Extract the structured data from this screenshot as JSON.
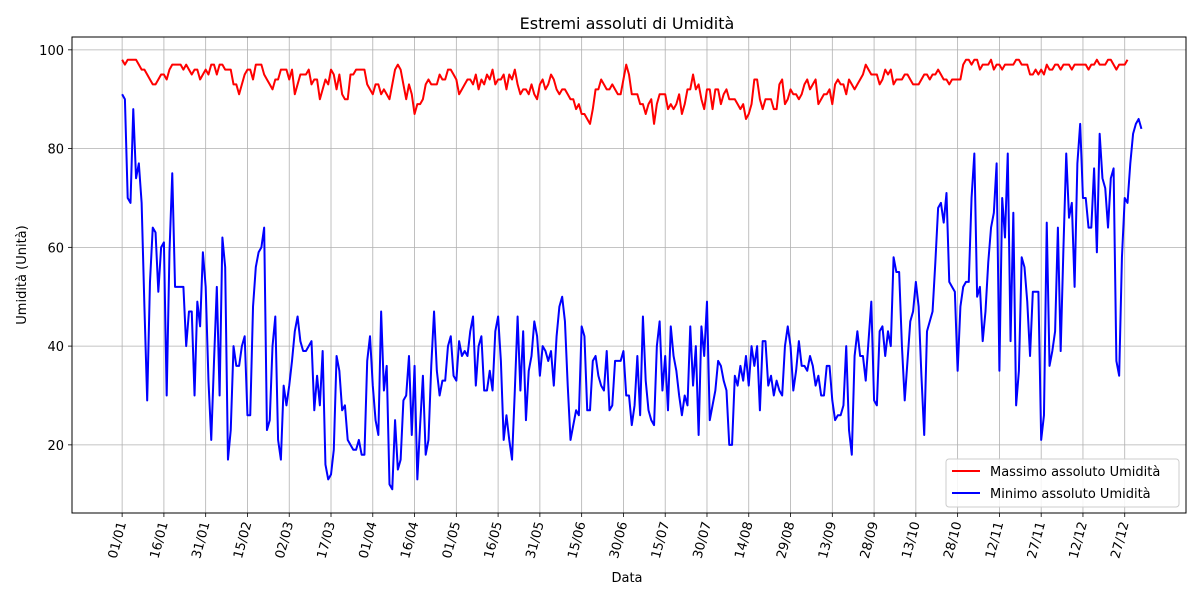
{
  "chart_data": {
    "type": "line",
    "title": "Estremi assoluti di Umidità",
    "xlabel": "Data",
    "ylabel": "Umidità (Unità)",
    "x_start": "2023-01-01",
    "x_end": "2023-12-31",
    "xlim": [
      "2022-12-14",
      "2024-01-18"
    ],
    "ylim": [
      6.2,
      102.6
    ],
    "x_ticks": [
      "01/01",
      "16/01",
      "31/01",
      "15/02",
      "02/03",
      "17/03",
      "01/04",
      "16/04",
      "01/05",
      "16/05",
      "31/05",
      "15/06",
      "30/06",
      "15/07",
      "30/07",
      "14/08",
      "29/08",
      "13/09",
      "28/09",
      "13/10",
      "28/10",
      "12/11",
      "27/11",
      "12/12",
      "27/12"
    ],
    "y_ticks": [
      20,
      40,
      60,
      80,
      100
    ],
    "grid": true,
    "legend_position": "bottom-right",
    "series": [
      {
        "name": "Massimo assoluto Umidità",
        "color": "#ff0000",
        "values": [
          98,
          97,
          98,
          98,
          98,
          98,
          97,
          96,
          96,
          95,
          94,
          93,
          93,
          94,
          95,
          95,
          94,
          96,
          97,
          97,
          97,
          97,
          96,
          97,
          96,
          95,
          96,
          96,
          94,
          95,
          96,
          95,
          97,
          97,
          95,
          97,
          97,
          96,
          96,
          96,
          93,
          93,
          91,
          93,
          95,
          96,
          96,
          94,
          97,
          97,
          97,
          95,
          94,
          93,
          92,
          94,
          94,
          96,
          96,
          96,
          94,
          96,
          91,
          93,
          95,
          95,
          95,
          96,
          93,
          94,
          94,
          90,
          92,
          94,
          93,
          96,
          95,
          92,
          95,
          91,
          90,
          90,
          95,
          95,
          96,
          96,
          96,
          96,
          93,
          92,
          91,
          93,
          93,
          91,
          92,
          91,
          90,
          93,
          96,
          97,
          96,
          93,
          90,
          93,
          91,
          87,
          89,
          89,
          90,
          93,
          94,
          93,
          93,
          93,
          95,
          94,
          94,
          96,
          96,
          95,
          94,
          91,
          92,
          93,
          94,
          94,
          93,
          95,
          92,
          94,
          93,
          95,
          94,
          96,
          93,
          94,
          94,
          95,
          92,
          95,
          94,
          96,
          93,
          91,
          92,
          92,
          91,
          93,
          91,
          90,
          93,
          94,
          92,
          93,
          95,
          94,
          92,
          91,
          92,
          92,
          91,
          90,
          90,
          88,
          89,
          87,
          87,
          86,
          85,
          88,
          92,
          92,
          94,
          93,
          92,
          92,
          93,
          92,
          91,
          91,
          94,
          97,
          95,
          91,
          91,
          91,
          89,
          89,
          87,
          89,
          90,
          85,
          89,
          91,
          91,
          91,
          88,
          89,
          88,
          89,
          91,
          87,
          89,
          92,
          92,
          95,
          92,
          93,
          90,
          88,
          92,
          92,
          88,
          92,
          92,
          89,
          91,
          92,
          90,
          90,
          90,
          89,
          88,
          89,
          86,
          87,
          89,
          94,
          94,
          90,
          88,
          90,
          90,
          90,
          88,
          88,
          93,
          94,
          89,
          90,
          92,
          91,
          91,
          90,
          91,
          93,
          94,
          92,
          93,
          94,
          89,
          90,
          91,
          91,
          92,
          89,
          93,
          94,
          93,
          93,
          91,
          94,
          93,
          92,
          93,
          94,
          95,
          97,
          96,
          95,
          95,
          95,
          93,
          94,
          96,
          95,
          96,
          93,
          94,
          94,
          94,
          95,
          95,
          94,
          93,
          93,
          93,
          94,
          95,
          95,
          94,
          95,
          95,
          96,
          95,
          94,
          94,
          93,
          94,
          94,
          94,
          94,
          97,
          98,
          98,
          97,
          98,
          98,
          96,
          97,
          97,
          97,
          98,
          96,
          97,
          97,
          96,
          97,
          97,
          97,
          97,
          98,
          98,
          97,
          97,
          97,
          95,
          95,
          96,
          95,
          96,
          95,
          97,
          96,
          96,
          97,
          97,
          96,
          97,
          97,
          97,
          96,
          97,
          97,
          97,
          97,
          97,
          96,
          97,
          97,
          98,
          97,
          97,
          97,
          98,
          98,
          97,
          96,
          97,
          97,
          97,
          98
        ]
      },
      {
        "name": "Minimo assoluto Umidità",
        "color": "#0000ff",
        "values": [
          91,
          90,
          70,
          69,
          88,
          74,
          77,
          69,
          48,
          29,
          53,
          64,
          63,
          51,
          60,
          61,
          30,
          59,
          75,
          52,
          52,
          52,
          52,
          40,
          47,
          47,
          30,
          49,
          44,
          59,
          52,
          33,
          21,
          37,
          52,
          30,
          62,
          56,
          17,
          23,
          40,
          36,
          36,
          40,
          42,
          26,
          26,
          48,
          56,
          59,
          60,
          64,
          23,
          25,
          40,
          46,
          21,
          17,
          32,
          28,
          32,
          37,
          43,
          46,
          41,
          39,
          39,
          40,
          41,
          27,
          34,
          28,
          39,
          16,
          13,
          14,
          19,
          38,
          35,
          27,
          28,
          21,
          20,
          19,
          19,
          21,
          18,
          18,
          37,
          42,
          32,
          25,
          22,
          47,
          31,
          36,
          12,
          11,
          25,
          15,
          17,
          29,
          30,
          38,
          22,
          36,
          13,
          24,
          34,
          18,
          21,
          36,
          47,
          35,
          30,
          33,
          33,
          40,
          42,
          34,
          33,
          41,
          38,
          39,
          38,
          43,
          46,
          32,
          40,
          42,
          31,
          31,
          35,
          31,
          43,
          46,
          37,
          21,
          26,
          21,
          17,
          31,
          46,
          31,
          43,
          25,
          35,
          38,
          45,
          42,
          34,
          40,
          39,
          37,
          39,
          32,
          42,
          48,
          50,
          45,
          32,
          21,
          24,
          27,
          26,
          44,
          42,
          27,
          27,
          37,
          38,
          34,
          32,
          31,
          39,
          27,
          28,
          37,
          37,
          37,
          39,
          30,
          30,
          24,
          28,
          38,
          26,
          46,
          33,
          27,
          25,
          24,
          40,
          45,
          31,
          38,
          27,
          44,
          38,
          35,
          30,
          26,
          30,
          28,
          44,
          32,
          40,
          22,
          44,
          38,
          49,
          25,
          28,
          31,
          37,
          36,
          33,
          31,
          20,
          20,
          34,
          32,
          36,
          33,
          38,
          32,
          40,
          36,
          40,
          27,
          41,
          41,
          32,
          34,
          30,
          33,
          31,
          30,
          40,
          44,
          40,
          31,
          35,
          41,
          36,
          36,
          35,
          38,
          36,
          32,
          34,
          30,
          30,
          36,
          36,
          29,
          25,
          26,
          26,
          28,
          40,
          23,
          18,
          38,
          43,
          38,
          38,
          33,
          41,
          49,
          29,
          28,
          43,
          44,
          38,
          43,
          40,
          58,
          55,
          55,
          40,
          29,
          37,
          45,
          47,
          53,
          48,
          34,
          22,
          43,
          45,
          47,
          57,
          68,
          69,
          65,
          71,
          53,
          52,
          51,
          35,
          48,
          52,
          53,
          53,
          70,
          79,
          50,
          52,
          41,
          47,
          57,
          64,
          67,
          77,
          35,
          70,
          62,
          79,
          41,
          67,
          28,
          35,
          58,
          56,
          49,
          38,
          51,
          51,
          51,
          21,
          26,
          65,
          36,
          39,
          43,
          64,
          39,
          60,
          79,
          66,
          69,
          52,
          77,
          85,
          70,
          70,
          64,
          64,
          76,
          59,
          83,
          74,
          72,
          64,
          74,
          76,
          37,
          34,
          58,
          70,
          69,
          77,
          83,
          85,
          86,
          84
        ]
      }
    ]
  }
}
